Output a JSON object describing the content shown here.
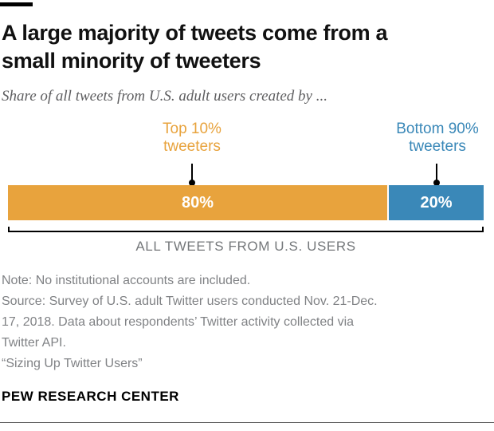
{
  "header": {
    "accent_color": "#000000",
    "title": "A large majority of tweets come from a\nsmall minority of tweeters",
    "subtitle": "Share of all tweets from U.S. adult users created by ..."
  },
  "chart_data": {
    "type": "bar",
    "variant": "horizontal-stacked-100pct",
    "title": "A large majority of tweets come from a small minority of tweeters",
    "subtitle": "Share of all tweets from U.S. adult users created by ...",
    "categories": [
      "Top 10% tweeters",
      "Bottom 90% tweeters"
    ],
    "values": [
      80,
      20
    ],
    "value_labels": [
      "80%",
      "20%"
    ],
    "colors": [
      "#E8A33D",
      "#3A88B8"
    ],
    "bar_label_color": "#FFFFFF",
    "callout_color": "#000000",
    "axis_label": "ALL TWEETS FROM U.S. USERS",
    "xlim": [
      0,
      100
    ],
    "grid": "off",
    "legend_position": "callout-labels-above-bar"
  },
  "series_labels": {
    "top10": "Top 10%\ntweeters",
    "bottom90": "Bottom 90%\ntweeters"
  },
  "bracket_label": "ALL TWEETS FROM U.S. USERS",
  "notes": {
    "note": "Note: No institutional accounts are included.",
    "source": "Source: Survey of U.S. adult Twitter users conducted Nov. 21-Dec.\n17, 2018. Data about respondents’ Twitter activity collected via\nTwitter API.",
    "report_title": "“Sizing Up Twitter Users”"
  },
  "footer": {
    "brand": "PEW RESEARCH CENTER"
  }
}
